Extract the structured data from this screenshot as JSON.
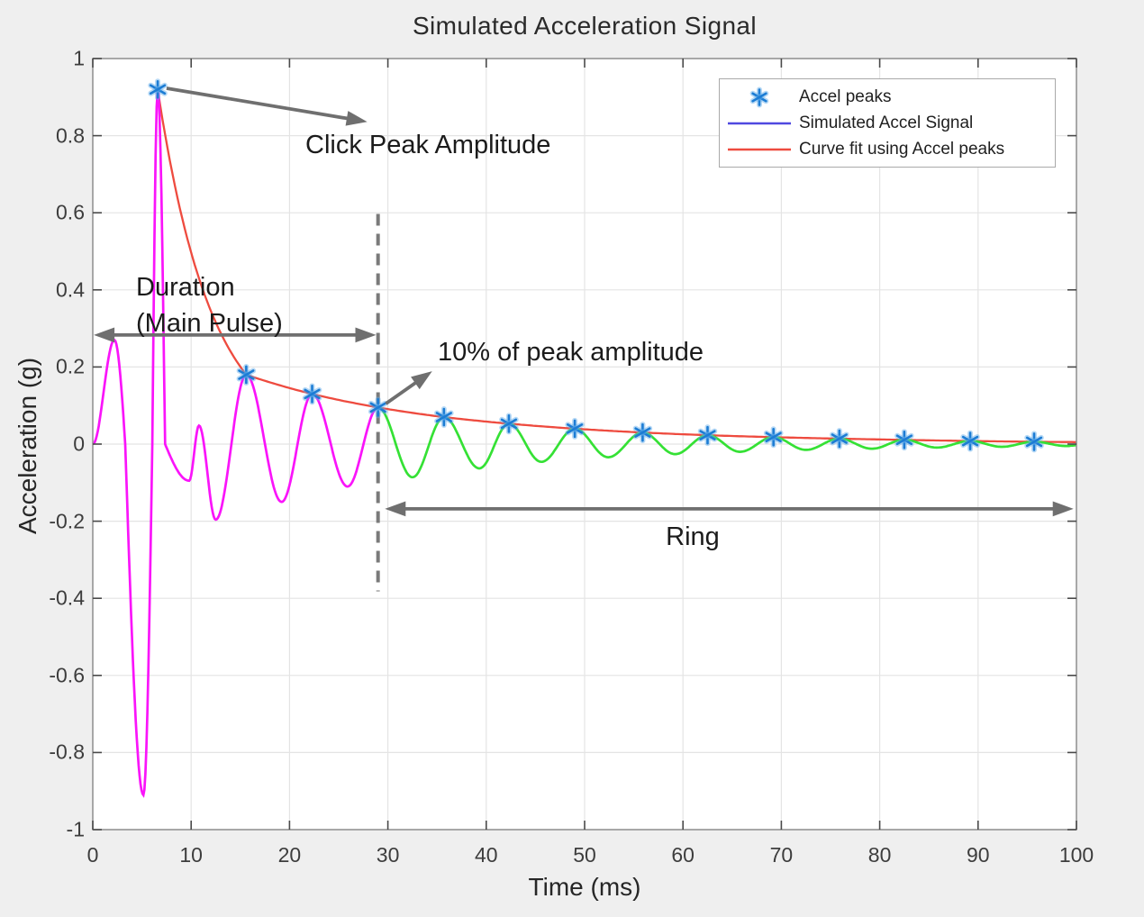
{
  "chart_data": {
    "type": "line",
    "title": "Simulated Acceleration Signal",
    "xlabel": "Time (ms)",
    "ylabel": "Acceleration (g)",
    "xlim": [
      0,
      100
    ],
    "ylim": [
      -1,
      1
    ],
    "grid": true,
    "x_ticks": [
      0,
      10,
      20,
      30,
      40,
      50,
      60,
      70,
      80,
      90,
      100
    ],
    "y_ticks": [
      -1,
      -0.8,
      -0.6,
      -0.4,
      -0.2,
      0,
      0.2,
      0.4,
      0.6,
      0.8,
      1
    ],
    "series": [
      {
        "name": "Simulated Accel Signal",
        "render": "oscillation-keypoints",
        "split_t": 29,
        "colors": {
          "main_pulse": "#fa14fa",
          "ring": "#35e135"
        },
        "keypoints": [
          [
            0,
            0,
            "e"
          ],
          [
            2.2,
            0.27,
            "e"
          ],
          [
            3.3,
            0,
            "c"
          ],
          [
            5.15,
            -0.91,
            "e"
          ],
          [
            6.05,
            0,
            "c"
          ],
          [
            6.6,
            0.92,
            "e"
          ],
          [
            7.35,
            0,
            "c"
          ],
          [
            9.8,
            -0.095,
            "e"
          ],
          [
            10.8,
            0.048,
            "e"
          ],
          [
            12.5,
            -0.196,
            "e"
          ],
          [
            15.6,
            0.18,
            "e"
          ],
          [
            19.2,
            -0.15,
            "e"
          ],
          [
            22.3,
            0.13,
            "e"
          ],
          [
            25.9,
            -0.11,
            "e"
          ],
          [
            29,
            0.095,
            "e"
          ],
          [
            32.5,
            -0.086,
            "e"
          ],
          [
            35.7,
            0.07,
            "e"
          ],
          [
            39.3,
            -0.063,
            "e"
          ],
          [
            42.3,
            0.053,
            "e"
          ],
          [
            45.6,
            -0.046,
            "e"
          ],
          [
            49,
            0.04,
            "e"
          ],
          [
            52.4,
            -0.034,
            "e"
          ],
          [
            55.9,
            0.03,
            "e"
          ],
          [
            59.2,
            -0.026,
            "e"
          ],
          [
            62.5,
            0.023,
            "e"
          ],
          [
            65.8,
            -0.02,
            "e"
          ],
          [
            69.2,
            0.018,
            "e"
          ],
          [
            72.5,
            -0.015,
            "e"
          ],
          [
            75.9,
            0.014,
            "e"
          ],
          [
            79.2,
            -0.012,
            "e"
          ],
          [
            82.5,
            0.011,
            "e"
          ],
          [
            85.8,
            -0.009,
            "e"
          ],
          [
            89.2,
            0.008,
            "e"
          ],
          [
            92.4,
            -0.007,
            "e"
          ],
          [
            95.7,
            0.006,
            "e"
          ],
          [
            99,
            -0.005,
            "e"
          ],
          [
            100,
            -0.003,
            "e"
          ]
        ]
      },
      {
        "name": "Curve fit using Accel peaks",
        "color": "#ee4b3f",
        "points": [
          [
            6.6,
            0.92
          ],
          [
            15.6,
            0.18
          ],
          [
            22.3,
            0.13
          ],
          [
            29,
            0.095
          ],
          [
            35.7,
            0.07
          ],
          [
            42.3,
            0.053
          ],
          [
            49,
            0.04
          ],
          [
            55.9,
            0.03
          ],
          [
            62.5,
            0.023
          ],
          [
            69.2,
            0.018
          ],
          [
            75.9,
            0.014
          ],
          [
            82.5,
            0.011
          ],
          [
            89.2,
            0.008
          ],
          [
            95.7,
            0.006
          ],
          [
            100,
            0.0052
          ]
        ]
      },
      {
        "name": "Accel peaks",
        "marker": "asterisk",
        "color": "#1c7cd4",
        "points": [
          [
            6.6,
            0.92
          ],
          [
            15.6,
            0.18
          ],
          [
            22.3,
            0.13
          ],
          [
            29,
            0.095
          ],
          [
            35.7,
            0.07
          ],
          [
            42.3,
            0.053
          ],
          [
            49,
            0.04
          ],
          [
            55.9,
            0.03
          ],
          [
            62.5,
            0.023
          ],
          [
            69.2,
            0.018
          ],
          [
            75.9,
            0.014
          ],
          [
            82.5,
            0.011
          ],
          [
            89.2,
            0.008
          ],
          [
            95.7,
            0.006
          ]
        ]
      }
    ],
    "annotations": {
      "click_peak": {
        "text": "Click Peak Amplitude",
        "arrow": {
          "from_t": 7.5,
          "from_v": 0.923,
          "to_t": 27.9,
          "to_v": 0.836,
          "heads": "end"
        }
      },
      "duration": {
        "text": "Duration\n(Main Pulse)",
        "arrow": {
          "from_t": 0.1,
          "from_v": 0.283,
          "to_t": 28.8,
          "to_v": 0.283,
          "heads": "both"
        }
      },
      "ten_percent": {
        "text": "10% of peak amplitude",
        "arrow": {
          "from_t": 29.8,
          "from_v": 0.105,
          "to_t": 34.5,
          "to_v": 0.189,
          "heads": "end"
        }
      },
      "ring": {
        "text": "Ring",
        "arrow": {
          "from_t": 29.7,
          "from_v": -0.168,
          "to_t": 99.7,
          "to_v": -0.168,
          "heads": "both"
        }
      },
      "threshold_line": {
        "t": 29,
        "v_top": 0.597,
        "v_bottom": -0.382,
        "style": "dashed"
      }
    },
    "legend_position": "top-right"
  },
  "legend": {
    "items": [
      {
        "label": "Accel peaks",
        "marker": "asterisk",
        "color": "#1c7cd4"
      },
      {
        "label": "Simulated Accel Signal",
        "marker": "line",
        "color": "#4f48e0"
      },
      {
        "label": "Curve fit using Accel peaks",
        "marker": "line",
        "color": "#ee4b3f"
      }
    ]
  },
  "colors": {
    "background": "#efefef",
    "plot_background": "#ffffff",
    "grid": "#e4e4e4",
    "axis_box": "#8f8f8f",
    "annotation_arrow": "#6f6f6f",
    "dashed_line": "#7a7a7a"
  }
}
